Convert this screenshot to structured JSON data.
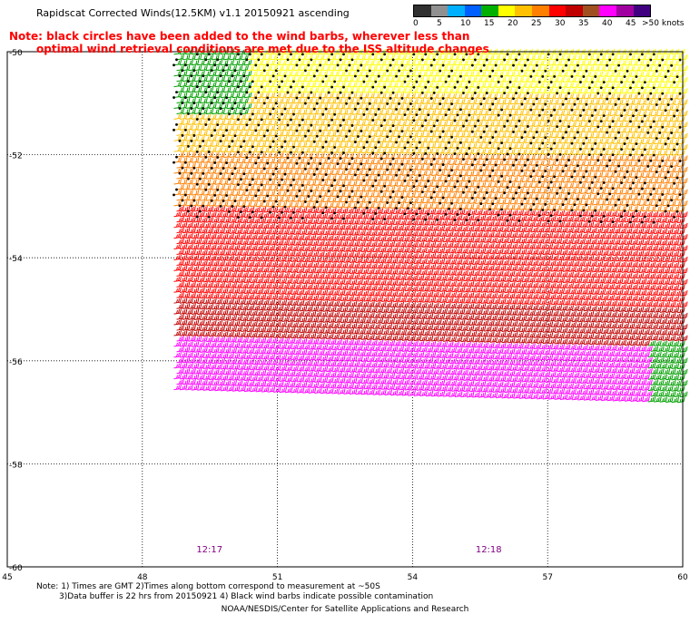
{
  "title": "Rapidscat Corrected Winds(12.5KM) v1.1 20150921 ascending",
  "note": {
    "line1": "Note: black circles have been added to the wind barbs, wherever less than",
    "line2": "optimal wind retrieval conditions are met due to the ISS altitude changes"
  },
  "legend": {
    "labels": [
      "0",
      "5",
      "10",
      "15",
      "20",
      "25",
      "30",
      "35",
      "40",
      "45",
      ">50 knots"
    ],
    "colors": [
      "#303030",
      "#909090",
      "#00b0ff",
      "#0060ff",
      "#00b000",
      "#ffff00",
      "#ffc000",
      "#ff8000",
      "#ff0000",
      "#c00000",
      "#a05020",
      "#ff00ff",
      "#a000a0",
      "#400080"
    ]
  },
  "chart_data": {
    "type": "scatter",
    "xlim": [
      45,
      60
    ],
    "ylim": [
      -60,
      -50
    ],
    "x_ticks": [
      "45",
      "48",
      "51",
      "54",
      "57",
      "60"
    ],
    "y_ticks": [
      "-50",
      "-52",
      "-54",
      "-56",
      "-58",
      "-60"
    ],
    "grid": true,
    "swath_times": [
      {
        "label": "12:17",
        "lon": 49.2
      },
      {
        "label": "12:18",
        "lon": 55.4
      }
    ],
    "swath": {
      "lon_range": [
        48.7,
        60
      ],
      "lat_range": [
        -56.6,
        -50
      ]
    },
    "wind_bands": [
      {
        "lat_start": -50.0,
        "lat_end": -50.8,
        "color": "#ffff00",
        "speed_kt": 20
      },
      {
        "lat_start": -50.8,
        "lat_end": -52.0,
        "color": "#ffc000",
        "speed_kt": 23
      },
      {
        "lat_start": -52.0,
        "lat_end": -53.0,
        "color": "#ff8000",
        "speed_kt": 28
      },
      {
        "lat_start": -53.0,
        "lat_end": -54.8,
        "color": "#ff0000",
        "speed_kt": 33
      },
      {
        "lat_start": -54.8,
        "lat_end": -55.6,
        "color": "#c00000",
        "speed_kt": 35
      },
      {
        "lat_start": -55.6,
        "lat_end": -56.6,
        "color": "#ff00ff",
        "speed_kt": 45
      }
    ]
  },
  "footer": {
    "line1": "Note: 1) Times are GMT 2)Times along bottom correspond to measurement at ~50S",
    "line2": "3)Data buffer is 22 hrs from 20150921 4) Black wind barbs indicate possible contamination",
    "credit": "NOAA/NESDIS/Center for Satellite Applications and Research"
  }
}
